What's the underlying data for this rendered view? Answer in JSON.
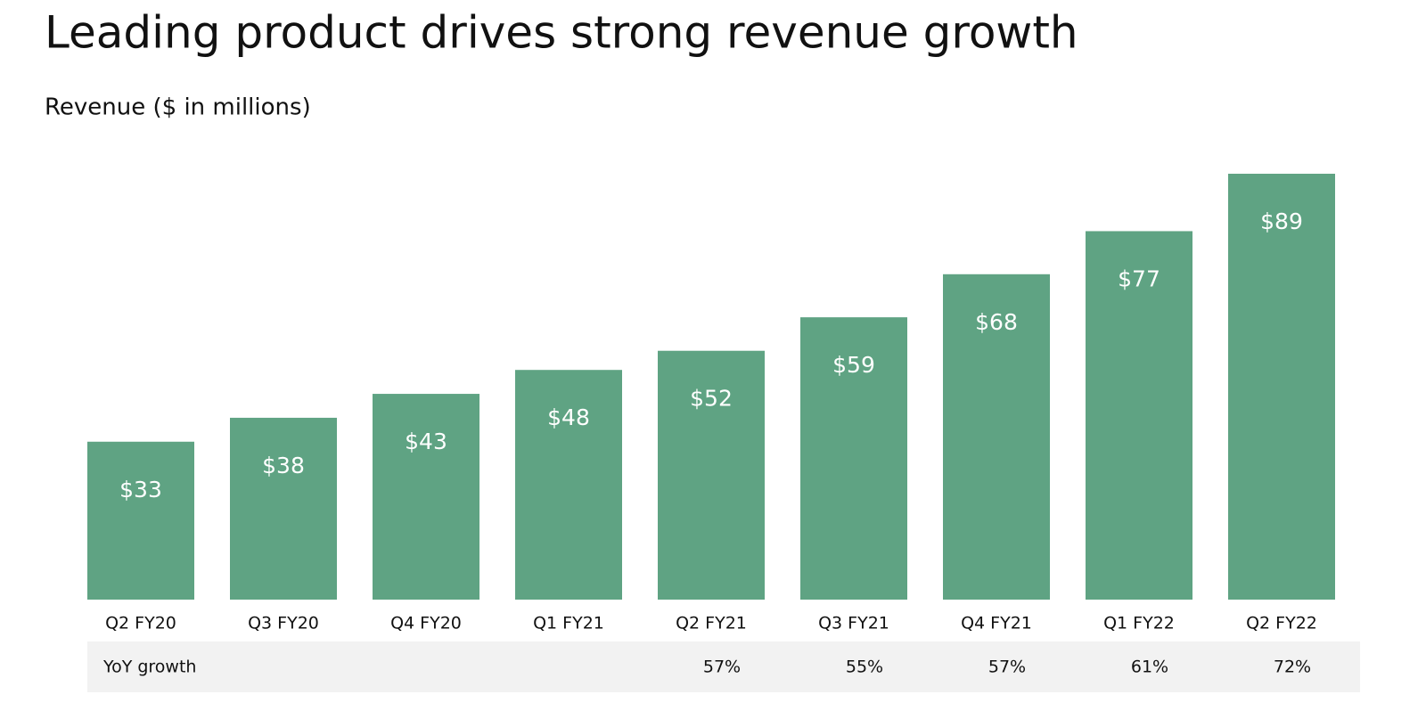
{
  "chart_data": {
    "type": "bar",
    "title": "Leading product drives strong revenue growth",
    "subtitle": "Revenue ($ in millions)",
    "categories": [
      "Q2 FY20",
      "Q3 FY20",
      "Q4 FY20",
      "Q1 FY21",
      "Q2 FY21",
      "Q3 FY21",
      "Q4 FY21",
      "Q1 FY22",
      "Q2 FY22"
    ],
    "values": [
      33,
      38,
      43,
      48,
      52,
      59,
      68,
      77,
      89
    ],
    "value_labels": [
      "$33",
      "$38",
      "$43",
      "$48",
      "$52",
      "$59",
      "$68",
      "$77",
      "$89"
    ],
    "color": "#5fa383",
    "growth": {
      "label": "YoY growth",
      "values": [
        null,
        null,
        null,
        null,
        57,
        55,
        57,
        61,
        72
      ],
      "value_labels": [
        null,
        null,
        null,
        null,
        "57%",
        "55%",
        "57%",
        "61%",
        "72%"
      ]
    }
  }
}
